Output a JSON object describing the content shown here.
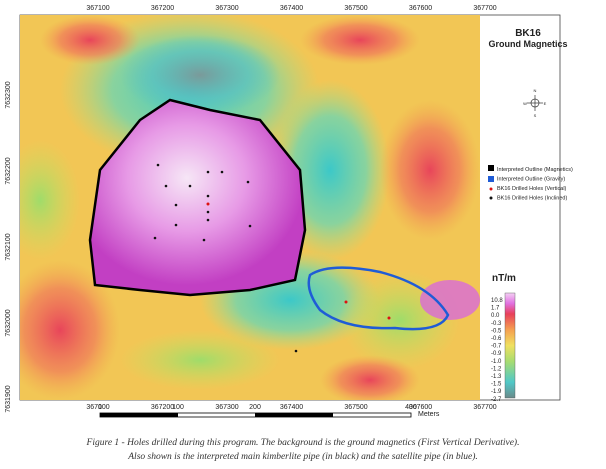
{
  "map": {
    "x_ticks": [
      "367100",
      "367200",
      "367300",
      "367400",
      "367500",
      "367600",
      "367700"
    ],
    "y_ticks": [
      "7632300",
      "7632200",
      "7632100",
      "7632000",
      "7631900"
    ],
    "title": "BK16",
    "subtitle": "Ground Magnetics",
    "compass": [
      "N",
      "E",
      "S",
      "W"
    ],
    "legend": [
      "Interpreted Outline (Magnetics)",
      "Interpreted Outline (Gravity)",
      "BK16 Drilled Holes (Vertical)",
      "BK16 Drilled Holes (Inclined)"
    ],
    "colorbar_unit": "nT/m",
    "colorbar_labels": [
      "10.8",
      "1.7",
      "0.0",
      "-0.3",
      "-0.5",
      "-0.6",
      "-0.7",
      "-0.9",
      "-1.0",
      "-1.2",
      "-1.3",
      "-1.5",
      "-1.9",
      "-2.7"
    ],
    "scale_labels": [
      "0",
      "100",
      "200",
      "400"
    ],
    "scale_unit": "Meters"
  },
  "caption": [
    "Figure 1 - Holes drilled during this program. The background is the ground magnetics (First Vertical Derivative).",
    "Also shown is the interpreted main kimberlite pipe (in black) and the satellite pipe (in blue)."
  ]
}
